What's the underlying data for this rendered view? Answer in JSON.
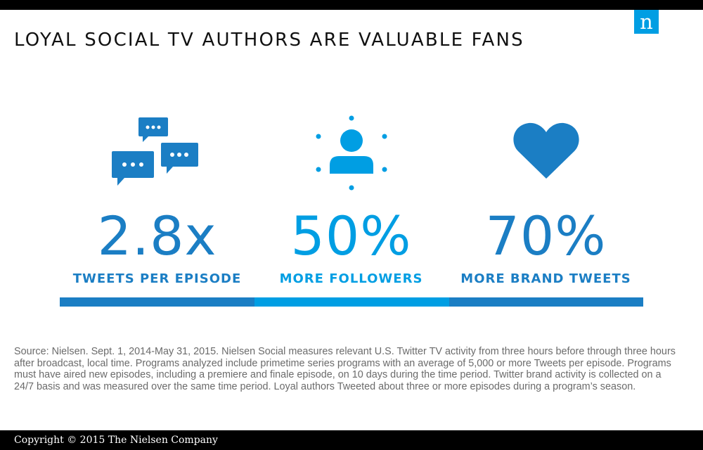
{
  "header": {
    "logo_letter": "n",
    "title": "LOYAL SOCIAL TV AUTHORS ARE VALUABLE FANS"
  },
  "stats": [
    {
      "icon": "chat-bubbles-icon",
      "value": "2.8x",
      "label": "TWEETS PER EPISODE",
      "color": "#1b7ec4"
    },
    {
      "icon": "person-icon",
      "value": "50%",
      "label": "MORE FOLLOWERS",
      "color": "#009ee3"
    },
    {
      "icon": "heart-icon",
      "value": "70%",
      "label": "MORE BRAND TWEETS",
      "color": "#1b7ec4"
    }
  ],
  "colors": {
    "dark_blue": "#1b7ec4",
    "light_blue": "#009ee3",
    "bars": "#000000"
  },
  "source_text": "Source: Nielsen. Sept. 1, 2014-May 31, 2015. Nielsen Social measures relevant U.S. Twitter TV activity from three hours before through three hours after broadcast, local time. Programs analyzed include primetime series programs with an average of 5,000 or more Tweets per episode. Programs must have aired new episodes, including a premiere and finale episode, on 10 days during the time period. Twitter brand activity is collected on a 24/7 basis and was measured over the same time period. Loyal authors Tweeted about three or more episodes during a program’s season.",
  "footer": {
    "copyright": "Copyright © 2015 The Nielsen Company"
  }
}
